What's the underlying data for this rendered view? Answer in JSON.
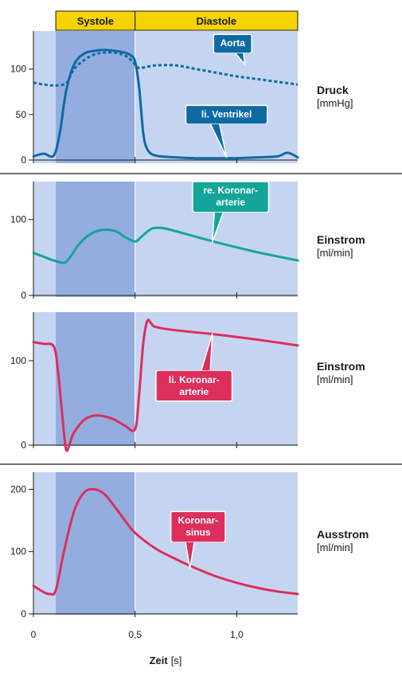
{
  "phases": {
    "systole": "Systole",
    "diastole": "Diastole",
    "color": "#f5d300",
    "systole_start": 0.11,
    "systole_end": 0.5
  },
  "x_axis": {
    "label": "Zeit",
    "unit": "[s]",
    "range": [
      0,
      1.3
    ],
    "ticks": [
      {
        "v": 0,
        "label": "0"
      },
      {
        "v": 0.5,
        "label": "0,5"
      },
      {
        "v": 1.0,
        "label": "1,0"
      }
    ]
  },
  "colors": {
    "background": "#c5d5f1",
    "systole_shade": "#93aede",
    "aorta": "#0e6aa3",
    "ventrikel": "#0e6aa3",
    "re_koronar": "#14a59a",
    "li_koronar": "#dc2f5c",
    "sinus": "#dc2f5c"
  },
  "chart_data": [
    {
      "type": "line",
      "side_title": "Druck",
      "unit": "[mmHg]",
      "ylim": [
        0,
        140
      ],
      "yticks": [
        0,
        50,
        100
      ],
      "series": [
        {
          "name": "Aorta",
          "color": "aorta",
          "dashed": true,
          "x": [
            0,
            0.05,
            0.1,
            0.15,
            0.17,
            0.2,
            0.25,
            0.3,
            0.35,
            0.4,
            0.45,
            0.48,
            0.5,
            0.52,
            0.55,
            0.6,
            0.7,
            0.8,
            0.9,
            1.0,
            1.1,
            1.2,
            1.3
          ],
          "y": [
            85,
            83,
            82,
            83,
            87,
            100,
            110,
            116,
            118,
            118,
            115,
            110,
            105,
            101,
            102,
            104,
            104,
            100,
            96,
            92,
            89,
            86,
            83
          ]
        },
        {
          "name": "li. Ventrikel",
          "color": "ventrikel",
          "dashed": false,
          "x": [
            0,
            0.05,
            0.1,
            0.13,
            0.16,
            0.2,
            0.25,
            0.3,
            0.35,
            0.4,
            0.45,
            0.48,
            0.5,
            0.52,
            0.54,
            0.56,
            0.6,
            0.7,
            0.8,
            0.9,
            1.0,
            1.1,
            1.2,
            1.25,
            1.3
          ],
          "y": [
            4,
            7,
            5,
            30,
            75,
            105,
            117,
            120,
            121,
            120,
            118,
            115,
            108,
            80,
            30,
            12,
            5,
            3,
            2,
            2,
            2,
            3,
            4,
            8,
            3
          ]
        }
      ],
      "callouts": [
        {
          "lines": [
            "Aorta"
          ],
          "color": "aorta",
          "box_x": 0.98,
          "box_y": 128,
          "pointer_x": 1.04,
          "pointer_y": 105
        },
        {
          "lines": [
            "li. Ventrikel"
          ],
          "color": "ventrikel",
          "box_x": 0.95,
          "box_y": 50,
          "pointer_x": 0.95,
          "pointer_y": 3
        }
      ]
    },
    {
      "type": "line",
      "side_title": "Einstrom",
      "unit": "[ml/min]",
      "ylim": [
        0,
        150
      ],
      "yticks": [
        0,
        100
      ],
      "series": [
        {
          "name": "re. Koronararterie",
          "color": "re_koronar",
          "dashed": false,
          "x": [
            0,
            0.05,
            0.1,
            0.15,
            0.18,
            0.22,
            0.27,
            0.33,
            0.4,
            0.45,
            0.5,
            0.53,
            0.57,
            0.6,
            0.65,
            0.75,
            0.9,
            1.1,
            1.3
          ],
          "y": [
            56,
            51,
            46,
            43,
            50,
            66,
            79,
            86,
            85,
            77,
            71,
            77,
            86,
            89,
            88,
            81,
            70,
            57,
            46
          ]
        }
      ],
      "callouts": [
        {
          "lines": [
            "re. Koronar-",
            "arterie"
          ],
          "color": "re_koronar",
          "box_x": 0.97,
          "box_y": 130,
          "pointer_x": 0.88,
          "pointer_y": 70
        }
      ]
    },
    {
      "type": "line",
      "side_title": "Einstrom",
      "unit": "[ml/min]",
      "ylim": [
        0,
        150
      ],
      "yticks": [
        0,
        100
      ],
      "series": [
        {
          "name": "li. Koronararterie",
          "color": "li_koronar",
          "dashed": false,
          "x": [
            0,
            0.05,
            0.1,
            0.12,
            0.14,
            0.16,
            0.18,
            0.2,
            0.25,
            0.3,
            0.35,
            0.4,
            0.45,
            0.5,
            0.52,
            0.54,
            0.56,
            0.58,
            0.6,
            0.7,
            0.9,
            1.1,
            1.3
          ],
          "y": [
            122,
            120,
            117,
            90,
            40,
            -5,
            3,
            15,
            30,
            35,
            34,
            30,
            23,
            19,
            60,
            120,
            147,
            144,
            140,
            136,
            131,
            125,
            118
          ]
        }
      ],
      "callouts": [
        {
          "lines": [
            "li. Koronar-",
            "arterie"
          ],
          "color": "li_koronar",
          "box_x": 0.79,
          "box_y": 70,
          "pointer_x": 0.88,
          "pointer_y": 132
        }
      ]
    },
    {
      "type": "line",
      "side_title": "Ausstrom",
      "unit": "[ml/min]",
      "ylim": [
        0,
        230
      ],
      "yticks": [
        0,
        100,
        200
      ],
      "series": [
        {
          "name": "Koronarsinus",
          "color": "sinus",
          "dashed": false,
          "x": [
            0,
            0.05,
            0.08,
            0.11,
            0.15,
            0.2,
            0.25,
            0.3,
            0.35,
            0.4,
            0.45,
            0.5,
            0.6,
            0.7,
            0.8,
            0.9,
            1.0,
            1.1,
            1.2,
            1.3
          ],
          "y": [
            45,
            35,
            32,
            38,
            100,
            165,
            195,
            200,
            192,
            172,
            150,
            130,
            105,
            88,
            73,
            60,
            50,
            42,
            36,
            32
          ]
        }
      ],
      "callouts": [
        {
          "lines": [
            "Koronar-",
            "sinus"
          ],
          "color": "sinus",
          "box_x": 0.81,
          "box_y": 140,
          "pointer_x": 0.77,
          "pointer_y": 73
        }
      ]
    }
  ]
}
